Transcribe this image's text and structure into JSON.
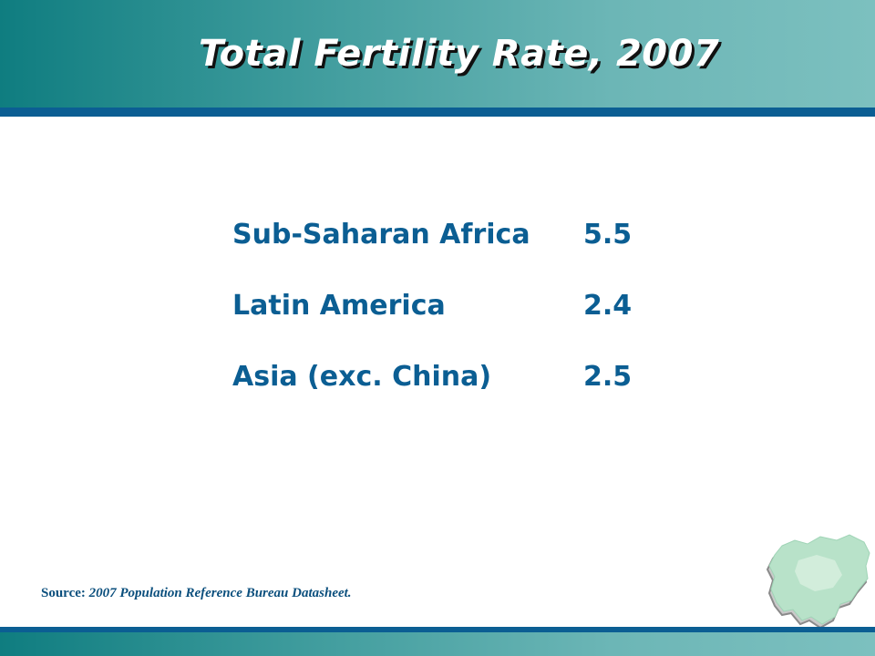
{
  "slide": {
    "title": "Total Fertility Rate, 2007",
    "rows": [
      {
        "label": "Sub-Saharan Africa",
        "value": "5.5"
      },
      {
        "label": "Latin America",
        "value": "2.4"
      },
      {
        "label": "Asia (exc. China)",
        "value": "2.5"
      }
    ],
    "source_label": "Source:",
    "source_text": "2007 Population Reference Bureau Datasheet."
  },
  "colors": {
    "header_teal": "#3f9c9d",
    "rule_blue": "#0b5e93",
    "text_blue": "#0b5e93"
  },
  "icons": {
    "map": "nigeria-map-icon"
  }
}
